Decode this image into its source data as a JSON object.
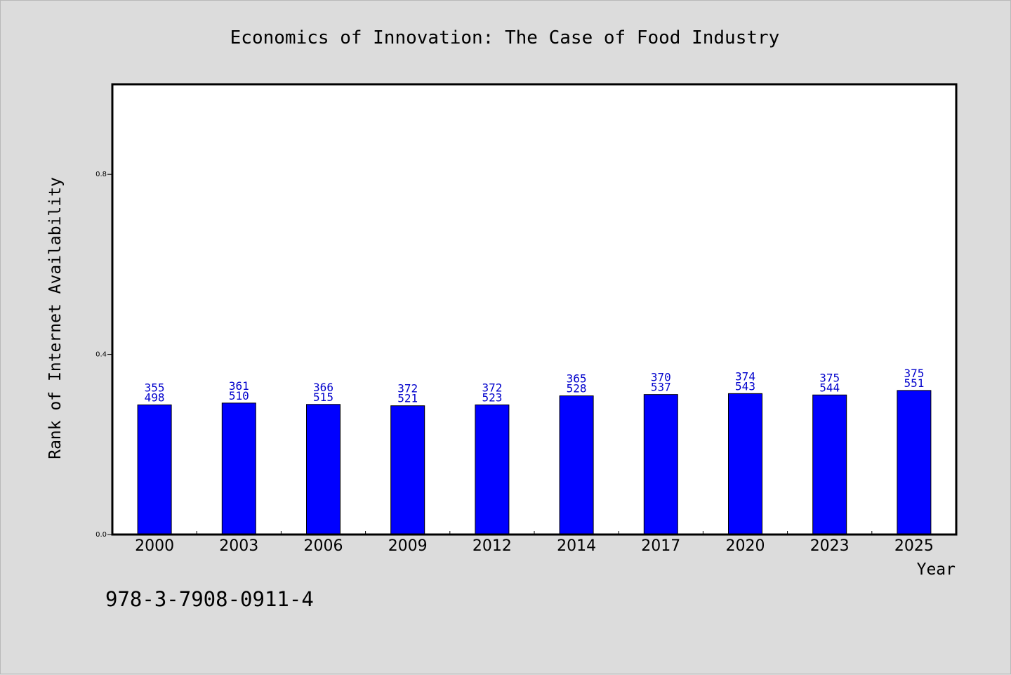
{
  "chart_data": {
    "type": "bar",
    "title": "Economics of Innovation: The Case of Food Industry",
    "xlabel": "Year",
    "ylabel": "Rank of Internet Availability",
    "categories": [
      "2000",
      "2003",
      "2006",
      "2009",
      "2012",
      "2014",
      "2017",
      "2020",
      "2023",
      "2025"
    ],
    "values": [
      0.288,
      0.292,
      0.289,
      0.286,
      0.288,
      0.308,
      0.311,
      0.313,
      0.31,
      0.32
    ],
    "bar_labels_top": [
      "355",
      "361",
      "366",
      "372",
      "372",
      "365",
      "370",
      "374",
      "375",
      "375"
    ],
    "bar_labels_bottom": [
      "498",
      "510",
      "515",
      "521",
      "523",
      "528",
      "537",
      "543",
      "544",
      "551"
    ],
    "ylim": [
      0,
      1.0
    ],
    "yticks": [
      0.0,
      0.4,
      0.8
    ],
    "ytick_labels": [
      "0.0",
      "0.4",
      "0.8"
    ],
    "grid": false,
    "bar_color": "#0000ff",
    "label_color": "#0000cc"
  },
  "footer_code": "978-3-7908-0911-4",
  "colors": {
    "background": "#dcdcdc",
    "plot_background": "#ffffff",
    "text": "#000000"
  }
}
